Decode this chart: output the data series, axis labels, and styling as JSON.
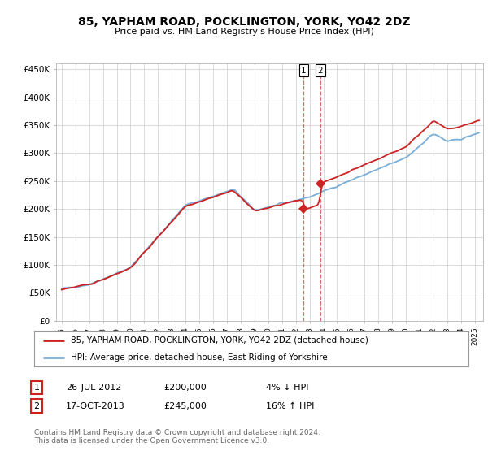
{
  "title": "85, YAPHAM ROAD, POCKLINGTON, YORK, YO42 2DZ",
  "subtitle": "Price paid vs. HM Land Registry's House Price Index (HPI)",
  "ylabel_ticks": [
    "£0",
    "£50K",
    "£100K",
    "£150K",
    "£200K",
    "£250K",
    "£300K",
    "£350K",
    "£400K",
    "£450K"
  ],
  "ylim": [
    0,
    460000
  ],
  "xlim_start": 1994.6,
  "xlim_end": 2025.6,
  "transaction1_date": 2012.57,
  "transaction1_price": 200000,
  "transaction2_date": 2013.79,
  "transaction2_price": 245000,
  "hpi_color": "#7aaed6",
  "price_color": "#cc2222",
  "vline_color": "#dd4444",
  "legend_label1": "85, YAPHAM ROAD, POCKLINGTON, YORK, YO42 2DZ (detached house)",
  "legend_label2": "HPI: Average price, detached house, East Riding of Yorkshire",
  "table_row1": [
    "1",
    "26-JUL-2012",
    "£200,000",
    "4% ↓ HPI"
  ],
  "table_row2": [
    "2",
    "17-OCT-2013",
    "£245,000",
    "16% ↑ HPI"
  ],
  "footnote": "Contains HM Land Registry data © Crown copyright and database right 2024.\nThis data is licensed under the Open Government Licence v3.0.",
  "background_color": "#ffffff",
  "grid_color": "#cccccc"
}
